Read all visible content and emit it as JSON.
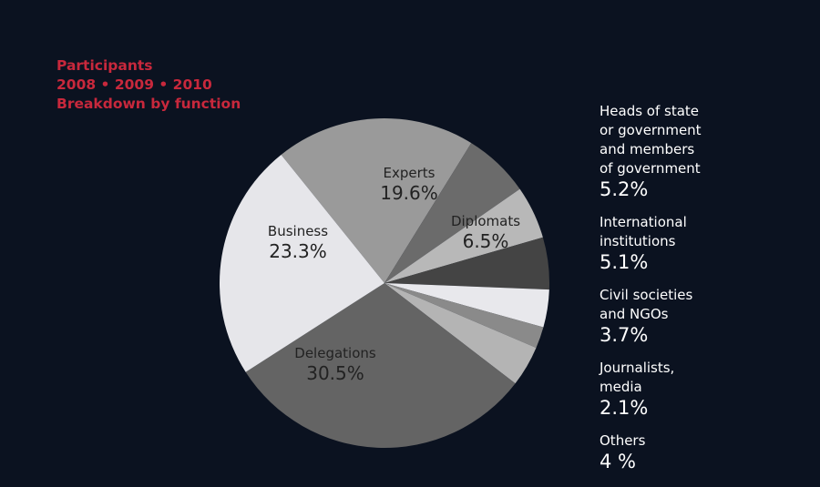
{
  "chart_data": {
    "type": "pie",
    "title": "Participants",
    "subtitle": "2008 • 2009 • 2010",
    "subtitle2": "Breakdown by function",
    "slices": [
      {
        "label": "Experts",
        "value": 19.6,
        "display": "19.6%",
        "color": "#9a9a9a",
        "inside": true
      },
      {
        "label": "Diplomats",
        "value": 6.5,
        "display": "6.5%",
        "color": "#6b6b6b",
        "inside": true
      },
      {
        "label": "Heads of state\nor government\nand members\nof government",
        "value": 5.2,
        "display": "5.2%",
        "color": "#b8b8b8",
        "inside": false
      },
      {
        "label": "International\ninstitutions",
        "value": 5.1,
        "display": "5.1%",
        "color": "#444444",
        "inside": false
      },
      {
        "label": "Civil societies\nand NGOs",
        "value": 3.7,
        "display": "3.7%",
        "color": "#e8e8ec",
        "inside": false
      },
      {
        "label": "Journalists,\nmedia",
        "value": 2.1,
        "display": "2.1%",
        "color": "#8a8a8a",
        "inside": false
      },
      {
        "label": "Others",
        "value": 4.0,
        "display": "4 %",
        "color": "#b4b4b4",
        "inside": false
      },
      {
        "label": "Delegations",
        "value": 30.5,
        "display": "30.5%",
        "color": "#646464",
        "inside": true
      },
      {
        "label": "Business",
        "value": 23.3,
        "display": "23.3%",
        "color": "#e6e6ea",
        "inside": true
      }
    ]
  }
}
